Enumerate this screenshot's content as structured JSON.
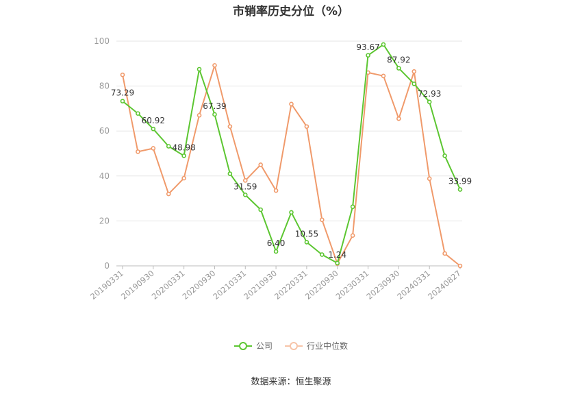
{
  "chart_data": {
    "type": "line",
    "title": "市销率历史分位（%）",
    "ylim": [
      0,
      100
    ],
    "yticks": [
      0,
      20,
      40,
      60,
      80,
      100
    ],
    "x_tick_labels": [
      "20190331",
      "20190930",
      "20200331",
      "20200930",
      "20210331",
      "20210930",
      "20220331",
      "20220930",
      "20230331",
      "20230930",
      "20240331",
      "20240827"
    ],
    "series": [
      {
        "name": "公司",
        "color": "#5cc631",
        "values": [
          73.29,
          67.8,
          60.92,
          53.2,
          48.98,
          87.5,
          67.39,
          41.0,
          31.59,
          25.0,
          6.4,
          23.8,
          10.55,
          5.0,
          1.24,
          26.3,
          93.67,
          98.5,
          87.92,
          81.0,
          72.93,
          49.0,
          33.99
        ],
        "labels": {
          "0": "73.29",
          "2": "60.92",
          "4": "48.98",
          "6": "67.39",
          "8": "31.59",
          "10": "6.40",
          "12": "10.55",
          "14": "1.24",
          "16": "93.67",
          "18": "87.92",
          "20": "72.93",
          "22": "33.99"
        }
      },
      {
        "name": "行业中位数",
        "color": "#f09a6b",
        "values": [
          85.0,
          50.8,
          52.3,
          32.0,
          39.0,
          67.0,
          89.2,
          62.0,
          38.0,
          45.0,
          33.5,
          72.0,
          62.0,
          20.5,
          1.0,
          13.5,
          86.0,
          84.5,
          65.5,
          86.5,
          38.8,
          5.5,
          0.0
        ]
      }
    ],
    "legend_position": "bottom",
    "grid": true
  },
  "source_text": "数据来源：恒生聚源"
}
